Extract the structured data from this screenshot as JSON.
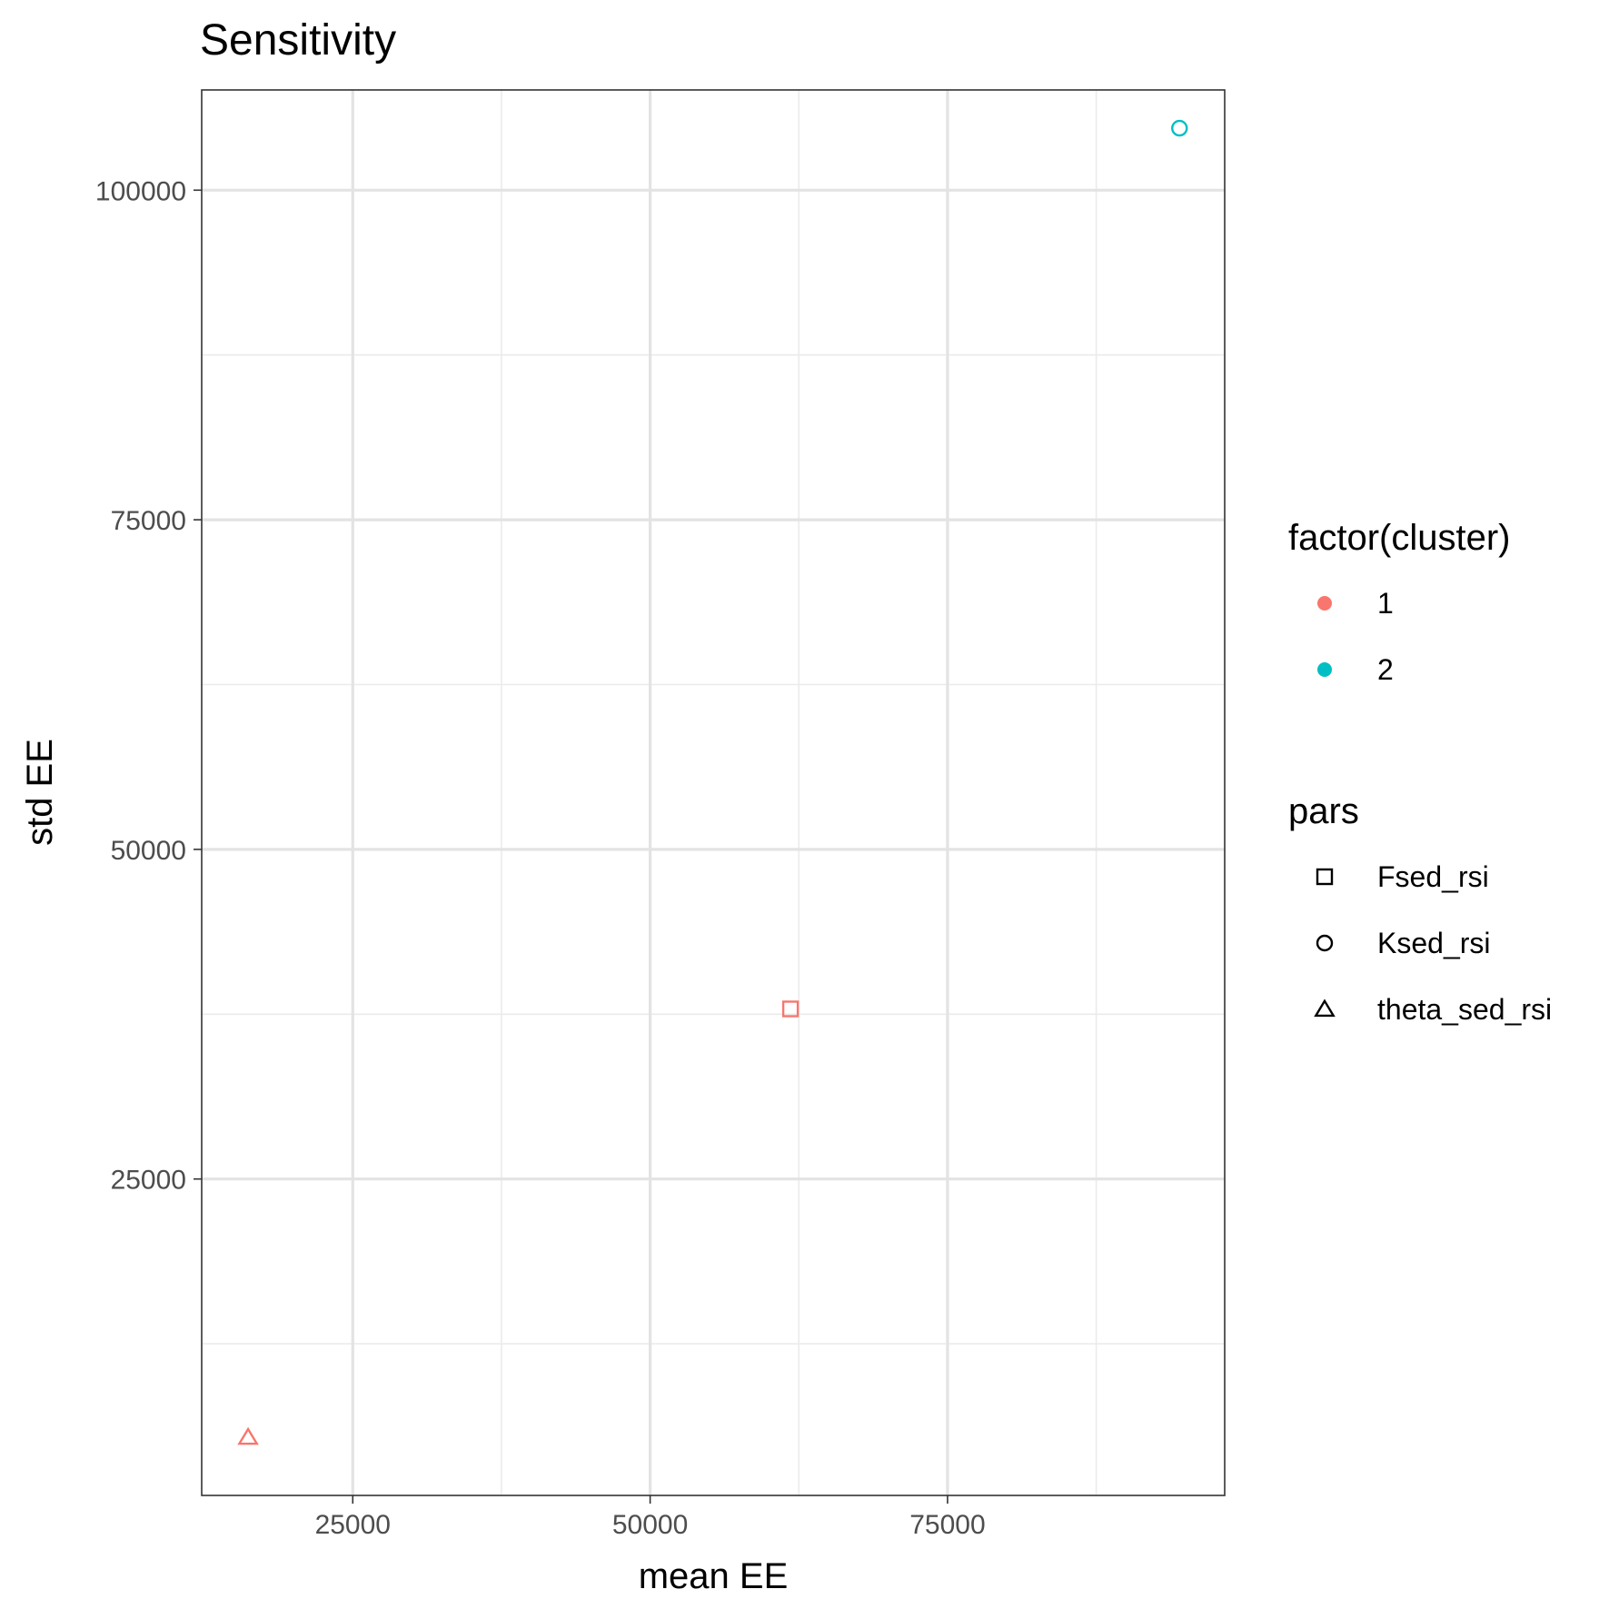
{
  "chart_data": {
    "type": "scatter",
    "title": "Sensitivity",
    "xlabel": "mean EE",
    "ylabel": "std EE",
    "xlim": [
      12300,
      98300
    ],
    "ylim": [
      1000,
      107600
    ],
    "x_ticks": [
      25000,
      50000,
      75000
    ],
    "x_minor_ticks": [
      37500,
      62500,
      87500
    ],
    "y_ticks": [
      25000,
      50000,
      75000,
      100000
    ],
    "y_minor_ticks": [
      12500,
      37500,
      62500,
      87500
    ],
    "grid": true,
    "points": [
      {
        "label": "Fsed_rsi",
        "x": 61800,
        "y": 37900,
        "cluster": "1",
        "shape": "square"
      },
      {
        "label": "Ksed_rsi",
        "x": 94500,
        "y": 104700,
        "cluster": "2",
        "shape": "circle"
      },
      {
        "label": "theta_sed_rsi",
        "x": 16200,
        "y": 5400,
        "cluster": "1",
        "shape": "triangle"
      }
    ],
    "colors": {
      "1": "#F8766D",
      "2": "#00BFC4"
    },
    "legend": {
      "placement": "right",
      "groups": [
        {
          "title": "factor(cluster)",
          "kind": "color",
          "items": [
            {
              "label": "1",
              "color": "#F8766D"
            },
            {
              "label": "2",
              "color": "#00BFC4"
            }
          ]
        },
        {
          "title": "pars",
          "kind": "shape",
          "items": [
            {
              "label": "Fsed_rsi",
              "shape": "square"
            },
            {
              "label": "Ksed_rsi",
              "shape": "circle"
            },
            {
              "label": "theta_sed_rsi",
              "shape": "triangle"
            }
          ]
        }
      ]
    }
  }
}
